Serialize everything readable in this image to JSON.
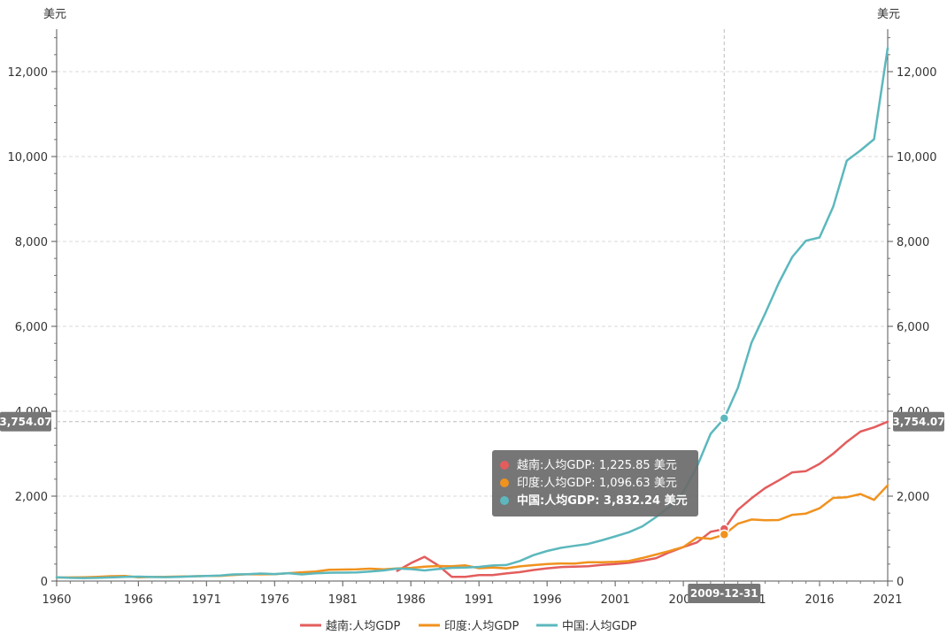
{
  "chart_data": {
    "type": "line",
    "unit_left": "美元",
    "unit_right": "美元",
    "x_tick_labels": [
      "1960",
      "1966",
      "1971",
      "1976",
      "1981",
      "1986",
      "1991",
      "1996",
      "2001",
      "2006",
      "2011",
      "2016",
      "2021"
    ],
    "xlim": [
      1960,
      2021
    ],
    "ylim": [
      0,
      13000
    ],
    "y_tick_labels": [
      "0",
      "2,000",
      "4,000",
      "6,000",
      "8,000",
      "10,000",
      "12,000"
    ],
    "legend_position": "bottom-center",
    "grid": true,
    "series": [
      {
        "name": "越南:人均GDP",
        "color": "#e35d5d",
        "points": [
          [
            1985,
            240
          ],
          [
            1986,
            420
          ],
          [
            1987,
            570
          ],
          [
            1988,
            370
          ],
          [
            1989,
            100
          ],
          [
            1990,
            100
          ],
          [
            1991,
            140
          ],
          [
            1992,
            140
          ],
          [
            1993,
            180
          ],
          [
            1994,
            210
          ],
          [
            1995,
            260
          ],
          [
            1996,
            300
          ],
          [
            1997,
            330
          ],
          [
            1998,
            340
          ],
          [
            1999,
            350
          ],
          [
            2000,
            380
          ],
          [
            2001,
            400
          ],
          [
            2002,
            430
          ],
          [
            2003,
            480
          ],
          [
            2004,
            540
          ],
          [
            2005,
            680
          ],
          [
            2006,
            800
          ],
          [
            2007,
            910
          ],
          [
            2008,
            1160
          ],
          [
            2009,
            1225.85
          ],
          [
            2010,
            1680
          ],
          [
            2011,
            1950
          ],
          [
            2012,
            2190
          ],
          [
            2013,
            2370
          ],
          [
            2014,
            2560
          ],
          [
            2015,
            2590
          ],
          [
            2016,
            2760
          ],
          [
            2017,
            3000
          ],
          [
            2018,
            3280
          ],
          [
            2019,
            3520
          ],
          [
            2020,
            3620
          ],
          [
            2021,
            3754.07
          ]
        ]
      },
      {
        "name": "印度:人均GDP",
        "color": "#f0921e",
        "points": [
          [
            1960,
            83
          ],
          [
            1961,
            86
          ],
          [
            1962,
            89
          ],
          [
            1963,
            100
          ],
          [
            1964,
            115
          ],
          [
            1965,
            119
          ],
          [
            1966,
            89
          ],
          [
            1967,
            96
          ],
          [
            1968,
            99
          ],
          [
            1969,
            107
          ],
          [
            1970,
            112
          ],
          [
            1971,
            118
          ],
          [
            1972,
            123
          ],
          [
            1973,
            144
          ],
          [
            1974,
            163
          ],
          [
            1975,
            158
          ],
          [
            1976,
            161
          ],
          [
            1977,
            186
          ],
          [
            1978,
            206
          ],
          [
            1979,
            224
          ],
          [
            1980,
            267
          ],
          [
            1981,
            270
          ],
          [
            1982,
            274
          ],
          [
            1983,
            291
          ],
          [
            1984,
            277
          ],
          [
            1985,
            297
          ],
          [
            1986,
            310
          ],
          [
            1987,
            340
          ],
          [
            1988,
            355
          ],
          [
            1989,
            347
          ],
          [
            1990,
            368
          ],
          [
            1991,
            303
          ],
          [
            1992,
            317
          ],
          [
            1993,
            301
          ],
          [
            1994,
            346
          ],
          [
            1995,
            374
          ],
          [
            1996,
            400
          ],
          [
            1997,
            415
          ],
          [
            1998,
            413
          ],
          [
            1999,
            442
          ],
          [
            2000,
            443
          ],
          [
            2001,
            452
          ],
          [
            2002,
            470
          ],
          [
            2003,
            543
          ],
          [
            2004,
            624
          ],
          [
            2005,
            710
          ],
          [
            2006,
            802
          ],
          [
            2007,
            1023
          ],
          [
            2008,
            993
          ],
          [
            2009,
            1096.63
          ],
          [
            2010,
            1351
          ],
          [
            2011,
            1449
          ],
          [
            2012,
            1434
          ],
          [
            2013,
            1438
          ],
          [
            2014,
            1560
          ],
          [
            2015,
            1590
          ],
          [
            2016,
            1714
          ],
          [
            2017,
            1958
          ],
          [
            2018,
            1974
          ],
          [
            2019,
            2050
          ],
          [
            2020,
            1913
          ],
          [
            2021,
            2257
          ]
        ]
      },
      {
        "name": "中国:人均GDP",
        "color": "#5cb8bd",
        "points": [
          [
            1960,
            90
          ],
          [
            1961,
            76
          ],
          [
            1962,
            70
          ],
          [
            1963,
            74
          ],
          [
            1964,
            85
          ],
          [
            1965,
            98
          ],
          [
            1966,
            104
          ],
          [
            1967,
            96
          ],
          [
            1968,
            91
          ],
          [
            1969,
            100
          ],
          [
            1970,
            113
          ],
          [
            1971,
            119
          ],
          [
            1972,
            132
          ],
          [
            1973,
            157
          ],
          [
            1974,
            160
          ],
          [
            1975,
            178
          ],
          [
            1976,
            165
          ],
          [
            1977,
            185
          ],
          [
            1978,
            156
          ],
          [
            1979,
            184
          ],
          [
            1980,
            195
          ],
          [
            1981,
            197
          ],
          [
            1982,
            203
          ],
          [
            1983,
            225
          ],
          [
            1984,
            251
          ],
          [
            1985,
            294
          ],
          [
            1986,
            282
          ],
          [
            1987,
            251
          ],
          [
            1988,
            283
          ],
          [
            1989,
            310
          ],
          [
            1990,
            317
          ],
          [
            1991,
            333
          ],
          [
            1992,
            366
          ],
          [
            1993,
            377
          ],
          [
            1994,
            473
          ],
          [
            1995,
            610
          ],
          [
            1996,
            709
          ],
          [
            1997,
            782
          ],
          [
            1998,
            829
          ],
          [
            1999,
            873
          ],
          [
            2000,
            959
          ],
          [
            2001,
            1053
          ],
          [
            2002,
            1149
          ],
          [
            2003,
            1289
          ],
          [
            2004,
            1509
          ],
          [
            2005,
            1753
          ],
          [
            2006,
            2099
          ],
          [
            2007,
            2694
          ],
          [
            2008,
            3468
          ],
          [
            2009,
            3832.24
          ],
          [
            2010,
            4550
          ],
          [
            2011,
            5614
          ],
          [
            2012,
            6301
          ],
          [
            2013,
            7020
          ],
          [
            2014,
            7636
          ],
          [
            2015,
            8016
          ],
          [
            2016,
            8094
          ],
          [
            2017,
            8817
          ],
          [
            2018,
            9905
          ],
          [
            2019,
            10144
          ],
          [
            2020,
            10409
          ],
          [
            2021,
            12556
          ]
        ]
      }
    ],
    "crosshair": {
      "x_label": "2009-12-31",
      "x_value": 2009,
      "y_label_left": "3,754.07",
      "y_label_right": "3,754.07",
      "y_value": 3754.07
    },
    "tooltip": {
      "rows": [
        {
          "text": "越南:人均GDP: 1,225.85  美元",
          "color": "#e35d5d",
          "bold": false
        },
        {
          "text": "印度:人均GDP: 1,096.63  美元",
          "color": "#f0921e",
          "bold": false
        },
        {
          "text": "中国:人均GDP: 3,832.24  美元",
          "color": "#5cb8bd",
          "bold": true
        }
      ]
    }
  }
}
